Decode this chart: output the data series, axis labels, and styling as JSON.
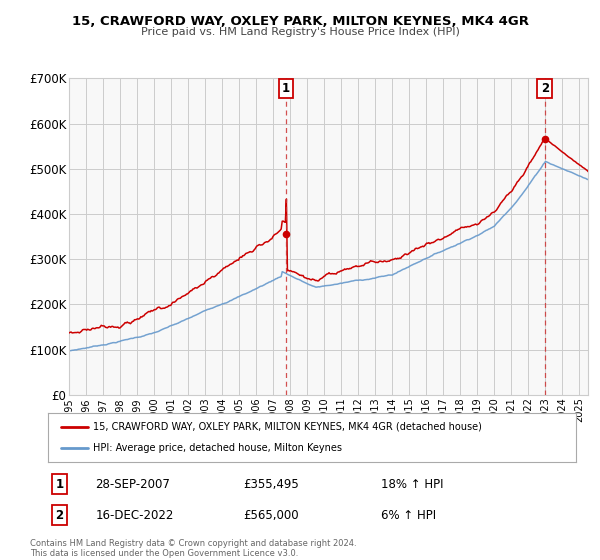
{
  "title": "15, CRAWFORD WAY, OXLEY PARK, MILTON KEYNES, MK4 4GR",
  "subtitle": "Price paid vs. HM Land Registry's House Price Index (HPI)",
  "legend_line1": "15, CRAWFORD WAY, OXLEY PARK, MILTON KEYNES, MK4 4GR (detached house)",
  "legend_line2": "HPI: Average price, detached house, Milton Keynes",
  "annotation1_date": "28-SEP-2007",
  "annotation1_price": "£355,495",
  "annotation1_hpi": "18% ↑ HPI",
  "annotation2_date": "16-DEC-2022",
  "annotation2_price": "£565,000",
  "annotation2_hpi": "6% ↑ HPI",
  "footer1": "Contains HM Land Registry data © Crown copyright and database right 2024.",
  "footer2": "This data is licensed under the Open Government Licence v3.0.",
  "ylim": [
    0,
    700000
  ],
  "yticks": [
    0,
    100000,
    200000,
    300000,
    400000,
    500000,
    600000,
    700000
  ],
  "ytick_labels": [
    "£0",
    "£100K",
    "£200K",
    "£300K",
    "£400K",
    "£500K",
    "£600K",
    "£700K"
  ],
  "red_color": "#cc0000",
  "blue_color": "#6699cc",
  "grid_color": "#cccccc",
  "bg_color": "#f8f8f8",
  "sale1_x": 2007.75,
  "sale1_y": 355495,
  "sale2_x": 2022.96,
  "sale2_y": 565000,
  "xmin": 1995.0,
  "xmax": 2025.5
}
